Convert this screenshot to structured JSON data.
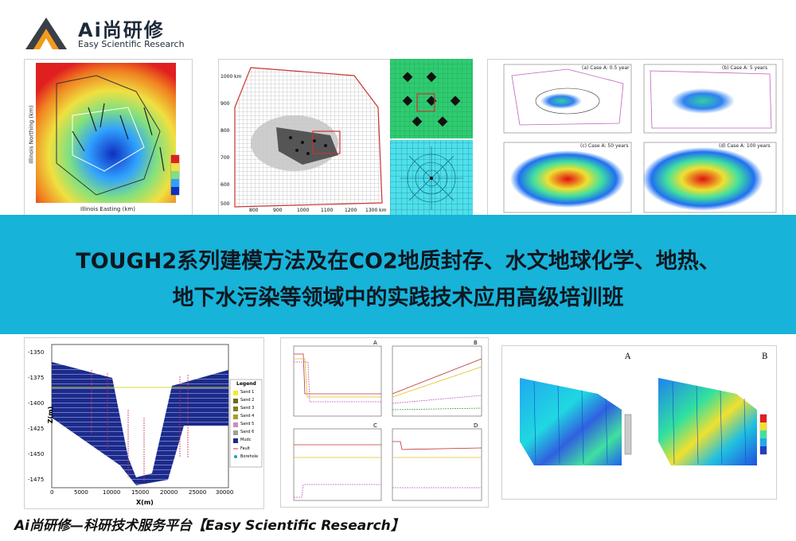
{
  "logo": {
    "brand": "Ai尚研修",
    "tagline": "Easy Scientific Research"
  },
  "banner": {
    "line1": "TOUGH2系列建模方法及在CO2地质封存、水文地球化学、地热、",
    "line2": "地下水污染等领域中的实践技术应用高级培训班"
  },
  "footer": {
    "text": "Ai尚研修—科研技术服务平台【Easy Scientific Research】"
  },
  "figures": {
    "top_left": {
      "xlabel": "Illinois Easting (km)",
      "ylabel": "Illinois Northing (km)"
    },
    "top_mid": {
      "xlabels": [
        "800",
        "900",
        "1000",
        "1100",
        "1200",
        "1300 km"
      ],
      "ylabels": [
        "1000 km",
        "900",
        "800",
        "700",
        "600",
        "500"
      ]
    },
    "top_right": {
      "titles": [
        "(a) Case A: 0.5 year",
        "(b) Case A: 5 years",
        "(c) Case A: 50 years",
        "(d) Case A: 100 years"
      ]
    },
    "bottom_left": {
      "xlabel": "X(m)",
      "ylabel": "Z(m)",
      "yticks": [
        "-1350",
        "-1375",
        "-1400",
        "-1425",
        "-1450",
        "-1475"
      ],
      "xticks": [
        "0",
        "5000",
        "10000",
        "15000",
        "20000",
        "25000",
        "30000"
      ],
      "legend_title": "Legend",
      "legend": [
        "Sand 1",
        "Sand 2",
        "Sand 3",
        "Sand 4",
        "Sand 5",
        "Sand 6",
        "Mudc",
        "Fault",
        "Borehole"
      ]
    },
    "bottom_mid": {
      "labels": [
        "A",
        "B",
        "C",
        "D"
      ]
    },
    "bottom_right": {
      "labels": [
        "A",
        "B"
      ]
    }
  },
  "colors": {
    "banner": "#17b3d9",
    "logo_orange": "#f29b1e",
    "logo_dark": "#3a3f47"
  }
}
